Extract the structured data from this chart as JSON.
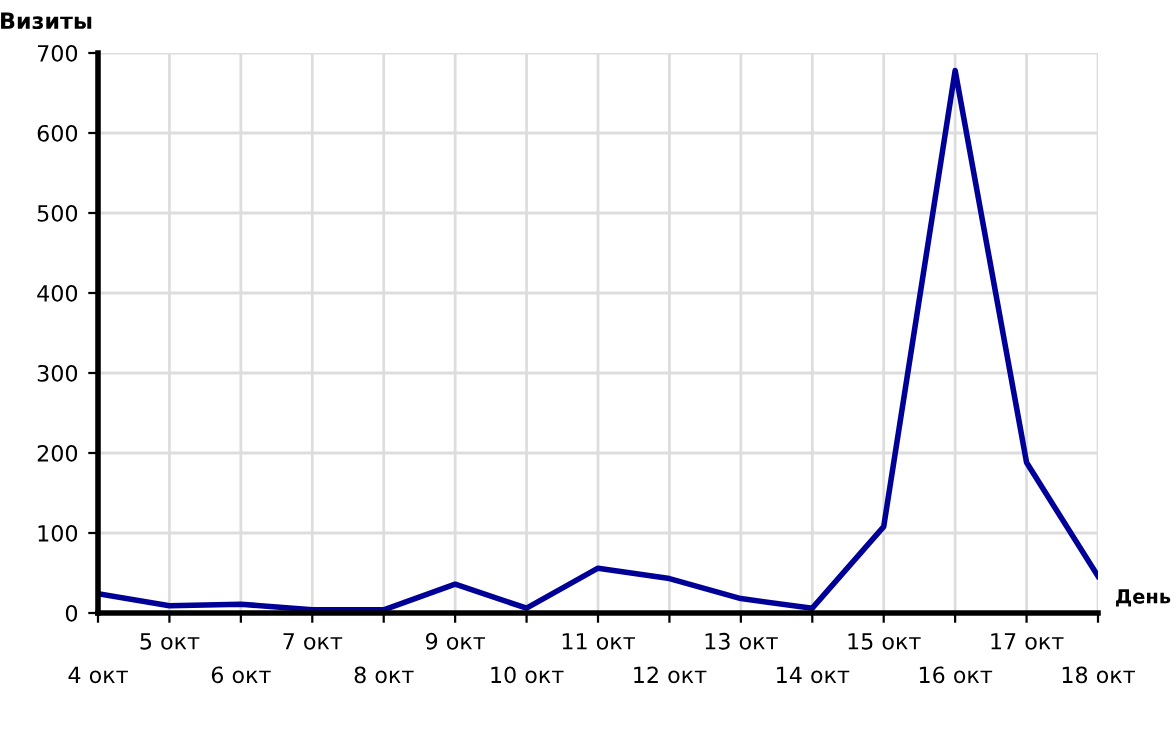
{
  "chart_data": {
    "type": "line",
    "xlabel": "День",
    "ylabel": "Визиты",
    "categories": [
      "4 окт",
      "5 окт",
      "6 окт",
      "7 окт",
      "8 окт",
      "9 окт",
      "10 окт",
      "11 окт",
      "12 окт",
      "13 окт",
      "14 окт",
      "15 окт",
      "16 окт",
      "17 окт",
      "18 окт"
    ],
    "series": [
      {
        "color": "#000099",
        "values": [
          24,
          9,
          11,
          4,
          4,
          36,
          6,
          56,
          43,
          18,
          6,
          108,
          678,
          188,
          46
        ]
      }
    ],
    "ylim": [
      0,
      700
    ],
    "yticks": [
      0,
      100,
      200,
      300,
      400,
      500,
      600,
      700
    ],
    "grid": true,
    "marker": "none",
    "line_style": "solid"
  }
}
